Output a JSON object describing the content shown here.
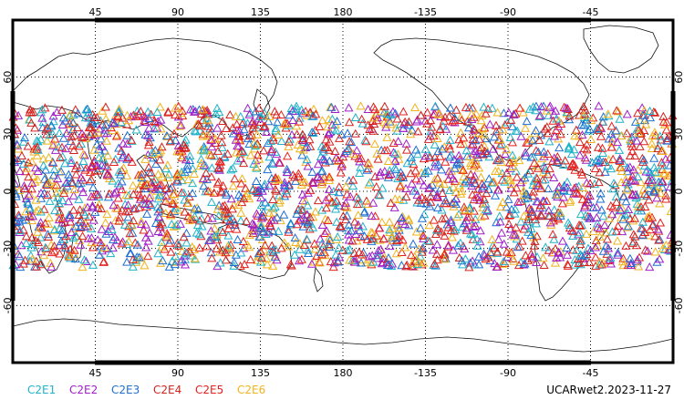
{
  "map": {
    "projection": "cylindrical-equidistant",
    "center_longitude": 180,
    "lon_range": [
      0,
      360
    ],
    "lat_range": [
      -90,
      90
    ],
    "gridlines": "dotted",
    "lon_tick_labels": [
      "45",
      "90",
      "135",
      "180",
      "-135",
      "-90",
      "-45"
    ],
    "lat_tick_labels": [
      "60",
      "30",
      "0",
      "-30",
      "-60"
    ],
    "marker": "triangle-open",
    "observation_lat_band": [
      -40,
      45
    ]
  },
  "legend": [
    {
      "name": "C2E1",
      "color": "#1fb3c9"
    },
    {
      "name": "C2E2",
      "color": "#a01fc8"
    },
    {
      "name": "C2E3",
      "color": "#1f6fd2"
    },
    {
      "name": "C2E4",
      "color": "#d2231f"
    },
    {
      "name": "C2E5",
      "color": "#e6201e"
    },
    {
      "name": "C2E6",
      "color": "#f0b41e"
    }
  ],
  "footer": {
    "label": "UCARwet2.2023-11-27"
  }
}
